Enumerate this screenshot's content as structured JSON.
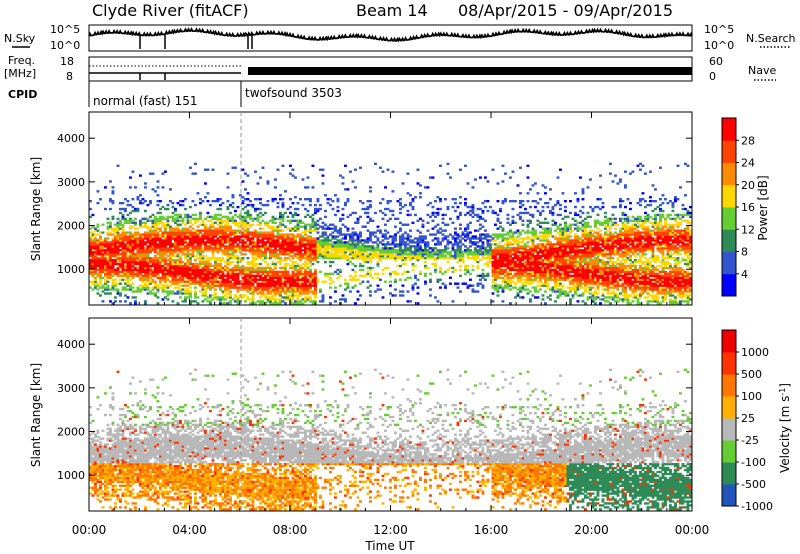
{
  "header": {
    "station": "Clyde River (fitACF)",
    "beam": "Beam 14",
    "date_range": "08/Apr/2015 - 09/Apr/2015"
  },
  "sky_panel": {
    "left_label": "N.Sky",
    "right_label": "N.Search",
    "left_ticks": [
      "10^5",
      "10^0"
    ],
    "right_ticks": [
      "10^5",
      "10^0"
    ]
  },
  "freq_panel": {
    "left_label_1": "Freq.",
    "left_label_2": "[MHz]",
    "right_label": "Nave",
    "left_ticks": [
      "18",
      "8"
    ],
    "right_ticks": [
      "60",
      "0"
    ]
  },
  "cpid_panel": {
    "label": "CPID",
    "programs": [
      {
        "name": "normal (fast) 151",
        "start_hour": 0,
        "end_hour": 6.1
      },
      {
        "name": "twofsound 3503",
        "start_hour": 6.1,
        "end_hour": 24
      }
    ]
  },
  "chart_data": [
    {
      "type": "heatmap",
      "name": "power",
      "ylabel": "Slant Range [km]",
      "yticks": [
        "4000",
        "3000",
        "2000",
        "1000"
      ],
      "ylim": [
        180,
        4600
      ],
      "xlim": [
        0,
        24
      ],
      "colorbar": {
        "label": "Power [dB]",
        "ticks": [
          "28",
          "24",
          "20",
          "16",
          "12",
          "8",
          "4"
        ],
        "colors": [
          "#0000ff",
          "#3355cc",
          "#2e8b57",
          "#66cc33",
          "#ffd700",
          "#ff8c00",
          "#ff4400",
          "#ff0000"
        ],
        "range": [
          0,
          32
        ]
      }
    },
    {
      "type": "heatmap",
      "name": "velocity",
      "ylabel": "Slant Range [km]",
      "yticks": [
        "4000",
        "3000",
        "2000",
        "1000"
      ],
      "ylim": [
        180,
        4600
      ],
      "xlim": [
        0,
        24
      ],
      "xlabel": "Time UT",
      "xticks": [
        "00:00",
        "04:00",
        "08:00",
        "12:00",
        "16:00",
        "20:00",
        "00:00"
      ],
      "xtick_hours": [
        0,
        4,
        8,
        12,
        16,
        20,
        24
      ],
      "colorbar": {
        "label": "Velocity [m s^-1]",
        "ticks": [
          "1000",
          "500",
          "100",
          "25",
          "-25",
          "-100",
          "-500",
          "-1000"
        ],
        "colors": [
          "#2255bb",
          "#2e8b57",
          "#66cc33",
          "#b8b8b8",
          "#ffb000",
          "#ff7700",
          "#ff3300",
          "#ee0000"
        ]
      }
    }
  ]
}
